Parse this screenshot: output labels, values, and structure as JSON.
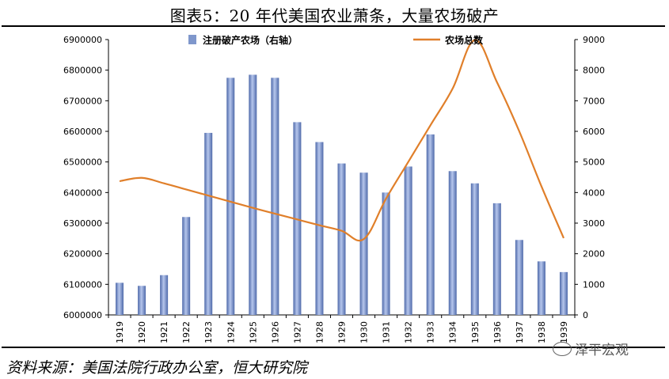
{
  "title": "图表5：20 年代美国农业萧条，大量农场破产",
  "source": "资料来源：美国法院行政办公室，恒大研究院",
  "watermark": "泽平宏观",
  "chart_data": {
    "type": "bar+line",
    "categories": [
      "1919",
      "1920",
      "1921",
      "1922",
      "1923",
      "1924",
      "1925",
      "1926",
      "1927",
      "1928",
      "1929",
      "1930",
      "1931",
      "1932",
      "1933",
      "1934",
      "1935",
      "1936",
      "1937",
      "1938",
      "1939"
    ],
    "series": [
      {
        "name": "注册破产农场（右轴）",
        "type": "bar",
        "axis": "right",
        "color": "#7f97cc",
        "values": [
          1050,
          950,
          1300,
          3200,
          5950,
          7750,
          7850,
          7750,
          6300,
          5650,
          4950,
          4650,
          4000,
          4850,
          5900,
          4700,
          4300,
          3650,
          2450,
          1750,
          1400
        ]
      },
      {
        "name": "农场总数",
        "type": "line",
        "axis": "left",
        "color": "#e07f2a",
        "values": [
          6437000,
          6448000,
          6430000,
          6410000,
          6390000,
          6370000,
          6350000,
          6331000,
          6312000,
          6293000,
          6275000,
          6248000,
          6380000,
          6500000,
          6620000,
          6740000,
          6898000,
          6760000,
          6600000,
          6420000,
          6251000
        ]
      }
    ],
    "y_left": {
      "min": 6000000,
      "max": 6900000,
      "step": 100000,
      "ticks": [
        "6000000",
        "6100000",
        "6200000",
        "6300000",
        "6400000",
        "6500000",
        "6600000",
        "6700000",
        "6800000",
        "6900000"
      ]
    },
    "y_right": {
      "min": 0,
      "max": 9000,
      "step": 1000,
      "ticks": [
        "0",
        "1000",
        "2000",
        "3000",
        "4000",
        "5000",
        "6000",
        "7000",
        "8000",
        "9000"
      ]
    },
    "legend_position": "top"
  }
}
